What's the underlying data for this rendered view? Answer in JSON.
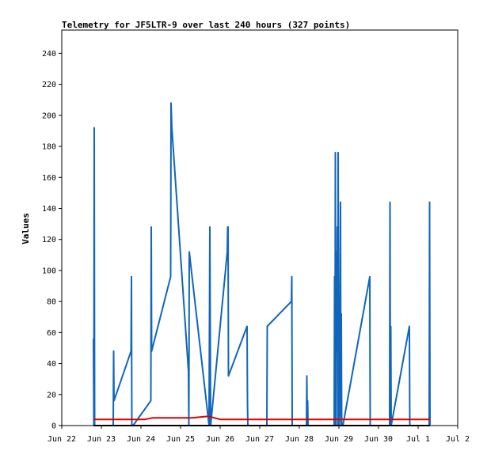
{
  "chart_data": {
    "type": "line",
    "title": "Telemetry for JF5LTR-9 over last 240 hours (327 points)",
    "xlabel": "",
    "ylabel": "Values",
    "xlim": [
      0,
      10
    ],
    "ylim": [
      0,
      255
    ],
    "x_tick_labels": [
      "Jun 22",
      "Jun 23",
      "Jun 24",
      "Jun 25",
      "Jun 26",
      "Jun 27",
      "Jun 28",
      "Jun 29",
      "Jun 30",
      "Jul 1",
      "Jul 2"
    ],
    "y_ticks": [
      0,
      20,
      40,
      60,
      80,
      100,
      120,
      140,
      160,
      180,
      200,
      220,
      240
    ],
    "grid": false,
    "series": [
      {
        "color": "#1166bb",
        "points": [
          [
            0.8,
            56
          ],
          [
            0.81,
            0
          ],
          [
            0.82,
            192
          ],
          [
            0.83,
            0
          ],
          [
            1.3,
            0
          ],
          [
            1.31,
            48
          ],
          [
            1.32,
            16
          ],
          [
            1.75,
            48
          ],
          [
            1.76,
            96
          ],
          [
            1.77,
            0
          ],
          [
            1.8,
            0
          ],
          [
            2.25,
            16
          ],
          [
            2.26,
            128
          ],
          [
            2.27,
            48
          ],
          [
            2.75,
            96
          ],
          [
            2.76,
            208
          ],
          [
            2.78,
            192
          ],
          [
            3.2,
            35
          ],
          [
            3.21,
            0
          ],
          [
            3.22,
            112
          ],
          [
            3.72,
            0
          ],
          [
            3.74,
            128
          ],
          [
            3.76,
            0
          ],
          [
            4.18,
            112
          ],
          [
            4.19,
            128
          ],
          [
            4.2,
            128
          ],
          [
            4.21,
            32
          ],
          [
            4.68,
            64
          ],
          [
            4.69,
            16
          ],
          [
            4.7,
            0
          ],
          [
            5.18,
            0
          ],
          [
            5.19,
            64
          ],
          [
            5.8,
            80
          ],
          [
            5.81,
            96
          ],
          [
            5.82,
            0
          ],
          [
            6.18,
            0
          ],
          [
            6.19,
            32
          ],
          [
            6.2,
            0
          ],
          [
            6.21,
            16
          ],
          [
            6.22,
            0
          ],
          [
            6.88,
            0
          ],
          [
            6.89,
            96
          ],
          [
            6.9,
            0
          ],
          [
            6.91,
            176
          ],
          [
            6.92,
            0
          ],
          [
            6.93,
            112
          ],
          [
            6.95,
            48
          ],
          [
            6.96,
            128
          ],
          [
            6.97,
            0
          ],
          [
            6.98,
            176
          ],
          [
            7.0,
            0
          ],
          [
            7.02,
            16
          ],
          [
            7.04,
            144
          ],
          [
            7.05,
            0
          ],
          [
            7.06,
            72
          ],
          [
            7.07,
            0
          ],
          [
            7.1,
            0
          ],
          [
            7.78,
            96
          ],
          [
            7.79,
            0
          ],
          [
            8.28,
            0
          ],
          [
            8.29,
            144
          ],
          [
            8.3,
            0
          ],
          [
            8.31,
            64
          ],
          [
            8.32,
            0
          ],
          [
            8.78,
            64
          ],
          [
            8.79,
            0
          ],
          [
            9.28,
            0
          ],
          [
            9.29,
            144
          ],
          [
            9.3,
            0
          ]
        ]
      },
      {
        "color": "#dd0000",
        "points": [
          [
            0.8,
            4
          ],
          [
            2.1,
            4
          ],
          [
            2.3,
            5
          ],
          [
            3.3,
            5
          ],
          [
            3.7,
            6
          ],
          [
            4.0,
            4
          ],
          [
            9.3,
            4
          ]
        ]
      },
      {
        "color": "#000000",
        "points": [
          [
            0.8,
            0
          ],
          [
            9.3,
            0
          ]
        ]
      }
    ]
  }
}
